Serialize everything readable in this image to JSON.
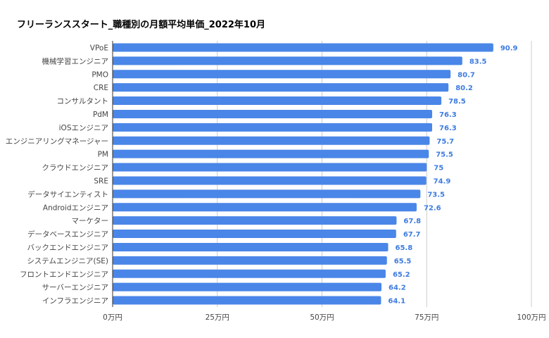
{
  "chart_data": {
    "type": "bar",
    "orientation": "horizontal",
    "title": "フリーランススタート_職種別の月額平均単価_2022年10月",
    "xlabel": "",
    "ylabel": "",
    "categories": [
      "VPoE",
      "機械学習エンジニア",
      "PMO",
      "CRE",
      "コンサルタント",
      "PdM",
      "iOSエンジニア",
      "エンジニアリングマネージャー",
      "PM",
      "クラウドエンジニア",
      "SRE",
      "データサイエンティスト",
      "Androidエンジニア",
      "マーケター",
      "データベースエンジニア",
      "バックエンドエンジニア",
      "システムエンジニア(SE)",
      "フロントエンドエンジニア",
      "サーバーエンジニア",
      "インフラエンジニア"
    ],
    "values": [
      90.9,
      83.5,
      80.7,
      80.2,
      78.5,
      76.3,
      76.3,
      75.7,
      75.5,
      75,
      74.9,
      73.5,
      72.6,
      67.8,
      67.7,
      65.8,
      65.5,
      65.2,
      64.2,
      64.1
    ],
    "value_labels": [
      "90.9",
      "83.5",
      "80.7",
      "80.2",
      "78.5",
      "76.3",
      "76.3",
      "75.7",
      "75.5",
      "75",
      "74.9",
      "73.5",
      "72.6",
      "67.8",
      "67.7",
      "65.8",
      "65.5",
      "65.2",
      "64.2",
      "64.1"
    ],
    "xlim": [
      0,
      100
    ],
    "ticks": [
      0,
      25,
      50,
      75,
      100
    ],
    "tick_labels": [
      "0万円",
      "25万円",
      "50万円",
      "75万円",
      "100万円"
    ],
    "grid": true,
    "legend": "none",
    "colors": {
      "bar": "#4a86e8",
      "value_label": "#3d7be0",
      "grid": "#cccccc",
      "axis": "#333333"
    }
  }
}
